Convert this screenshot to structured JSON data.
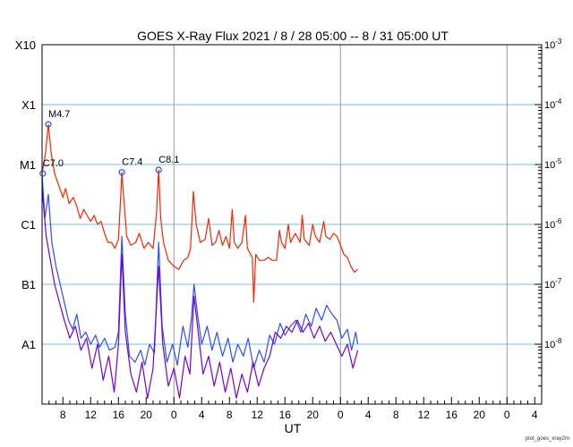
{
  "chart_data": {
    "type": "line",
    "title": "GOES X-Ray Flux   2021 /  8 / 28   05:00 --  8 / 31   05:00   UT",
    "xlabel": "UT",
    "ylabel": "",
    "footer": "plot_goes_xray2m",
    "x_unit": "hours since 2021-08-28 05:00 UT",
    "xlim": [
      0,
      72
    ],
    "ylim_log10": [
      -9,
      -3
    ],
    "yscale": "log",
    "grid": true,
    "x_tick_labels": [
      "8",
      "12",
      "16",
      "20",
      "0",
      "4",
      "8",
      "12",
      "16",
      "20",
      "0",
      "4",
      "8",
      "12",
      "16",
      "20",
      "0",
      "4"
    ],
    "x_tick_hours": [
      3,
      7,
      11,
      15,
      19,
      23,
      27,
      31,
      35,
      39,
      43,
      47,
      51,
      55,
      59,
      63,
      67,
      71
    ],
    "day_boundaries": [
      19,
      43,
      67
    ],
    "flare_class_labels": [
      {
        "label": "X10",
        "log10": -3
      },
      {
        "label": "X1",
        "log10": -4
      },
      {
        "label": "M1",
        "log10": -5
      },
      {
        "label": "C1",
        "log10": -6
      },
      {
        "label": "B1",
        "log10": -7
      },
      {
        "label": "A1",
        "log10": -8
      }
    ],
    "right_axis_labels": [
      {
        "base": "10",
        "exp": "-3",
        "log10": -3
      },
      {
        "base": "10",
        "exp": "-4",
        "log10": -4
      },
      {
        "base": "10",
        "exp": "-5",
        "log10": -5
      },
      {
        "base": "10",
        "exp": "-6",
        "log10": -6
      },
      {
        "base": "10",
        "exp": "-7",
        "log10": -7
      },
      {
        "base": "10",
        "exp": "-8",
        "log10": -8
      }
    ],
    "annotations": [
      {
        "label": "C7.0",
        "x": 0.1,
        "log10": -5.15
      },
      {
        "label": "M4.7",
        "x": 0.9,
        "log10": -4.33
      },
      {
        "label": "C7.4",
        "x": 11.5,
        "log10": -5.13
      },
      {
        "label": "C8.1",
        "x": 16.8,
        "log10": -5.09
      }
    ],
    "series": [
      {
        "color": "#ff2200",
        "points": [
          [
            0,
            -5.15
          ],
          [
            0.5,
            -4.8
          ],
          [
            0.9,
            -4.33
          ],
          [
            1.3,
            -4.8
          ],
          [
            1.8,
            -5.15
          ],
          [
            2.4,
            -5.35
          ],
          [
            3,
            -5.55
          ],
          [
            3.4,
            -5.4
          ],
          [
            3.9,
            -5.65
          ],
          [
            4.5,
            -5.55
          ],
          [
            5,
            -5.7
          ],
          [
            5.5,
            -5.9
          ],
          [
            6,
            -5.75
          ],
          [
            6.5,
            -5.85
          ],
          [
            7,
            -5.95
          ],
          [
            7.5,
            -5.85
          ],
          [
            8,
            -6.0
          ],
          [
            8.5,
            -5.95
          ],
          [
            9,
            -6.15
          ],
          [
            9.5,
            -6.3
          ],
          [
            10,
            -6.3
          ],
          [
            10.5,
            -6.4
          ],
          [
            11,
            -6.25
          ],
          [
            11.3,
            -5.6
          ],
          [
            11.5,
            -5.13
          ],
          [
            11.8,
            -5.6
          ],
          [
            12.2,
            -6.2
          ],
          [
            12.8,
            -6.35
          ],
          [
            13.5,
            -6.3
          ],
          [
            14,
            -6.15
          ],
          [
            14.7,
            -6.4
          ],
          [
            15.3,
            -6.3
          ],
          [
            16,
            -6.4
          ],
          [
            16.5,
            -5.8
          ],
          [
            16.8,
            -5.09
          ],
          [
            17.1,
            -5.9
          ],
          [
            17.5,
            -6.3
          ],
          [
            18.2,
            -6.6
          ],
          [
            19,
            -6.7
          ],
          [
            19.7,
            -6.75
          ],
          [
            20.4,
            -6.6
          ],
          [
            21,
            -6.55
          ],
          [
            21.4,
            -6.4
          ],
          [
            21.8,
            -5.45
          ],
          [
            22.2,
            -6.0
          ],
          [
            22.8,
            -6.3
          ],
          [
            23.5,
            -6.25
          ],
          [
            24,
            -5.9
          ],
          [
            24.5,
            -6.35
          ],
          [
            25,
            -6.3
          ],
          [
            25.5,
            -6.1
          ],
          [
            26,
            -6.35
          ],
          [
            26.5,
            -6.2
          ],
          [
            27,
            -6.4
          ],
          [
            27.4,
            -5.75
          ],
          [
            27.7,
            -6.3
          ],
          [
            28.2,
            -6.4
          ],
          [
            28.8,
            -6.3
          ],
          [
            29.3,
            -5.85
          ],
          [
            29.6,
            -6.4
          ],
          [
            30.3,
            -6.55
          ],
          [
            30.5,
            -7.3
          ],
          [
            30.8,
            -6.5
          ],
          [
            31.3,
            -6.6
          ],
          [
            32,
            -6.6
          ],
          [
            32.6,
            -6.55
          ],
          [
            33.2,
            -6.6
          ],
          [
            33.8,
            -6.6
          ],
          [
            34.2,
            -6.1
          ],
          [
            34.5,
            -6.3
          ],
          [
            35,
            -6.4
          ],
          [
            35.5,
            -6.0
          ],
          [
            35.8,
            -6.3
          ],
          [
            36.5,
            -6.15
          ],
          [
            37.2,
            -6.3
          ],
          [
            37.5,
            -5.85
          ],
          [
            37.8,
            -6.25
          ],
          [
            38.5,
            -6.35
          ],
          [
            39,
            -6.0
          ],
          [
            39.4,
            -6.2
          ],
          [
            40,
            -6.3
          ],
          [
            40.6,
            -5.95
          ],
          [
            40.9,
            -6.2
          ],
          [
            41.5,
            -6.25
          ],
          [
            42,
            -6.15
          ],
          [
            42.5,
            -6.2
          ],
          [
            43,
            -6.35
          ],
          [
            43.5,
            -6.5
          ],
          [
            44,
            -6.55
          ],
          [
            44.5,
            -6.7
          ],
          [
            45,
            -6.8
          ],
          [
            45.5,
            -6.75
          ]
        ]
      },
      {
        "color": "#2b4cff",
        "points": [
          [
            0,
            -5.15
          ],
          [
            0.4,
            -5.9
          ],
          [
            0.9,
            -5.5
          ],
          [
            1.4,
            -6.3
          ],
          [
            2,
            -6.7
          ],
          [
            2.6,
            -7.0
          ],
          [
            3.2,
            -7.3
          ],
          [
            3.8,
            -7.6
          ],
          [
            4.4,
            -7.75
          ],
          [
            5,
            -7.5
          ],
          [
            5.6,
            -7.9
          ],
          [
            6.3,
            -7.8
          ],
          [
            7,
            -8.0
          ],
          [
            7.7,
            -7.85
          ],
          [
            8.3,
            -8.05
          ],
          [
            9,
            -7.9
          ],
          [
            9.7,
            -8.1
          ],
          [
            10.5,
            -8.05
          ],
          [
            11,
            -7.8
          ],
          [
            11.5,
            -6.2
          ],
          [
            12,
            -7.5
          ],
          [
            12.6,
            -8.2
          ],
          [
            13.4,
            -8.3
          ],
          [
            14.2,
            -8.1
          ],
          [
            14.8,
            -8.35
          ],
          [
            15.5,
            -8.0
          ],
          [
            16.2,
            -8.15
          ],
          [
            16.8,
            -6.3
          ],
          [
            17.3,
            -7.7
          ],
          [
            18,
            -8.3
          ],
          [
            18.8,
            -8.0
          ],
          [
            19.5,
            -8.35
          ],
          [
            20.3,
            -7.7
          ],
          [
            21,
            -8.05
          ],
          [
            21.5,
            -7.6
          ],
          [
            21.9,
            -7.0
          ],
          [
            22.4,
            -7.5
          ],
          [
            23,
            -8.0
          ],
          [
            23.8,
            -7.7
          ],
          [
            24.5,
            -8.1
          ],
          [
            25.2,
            -7.8
          ],
          [
            26,
            -8.2
          ],
          [
            26.8,
            -7.9
          ],
          [
            27.5,
            -8.3
          ],
          [
            28.2,
            -8.0
          ],
          [
            29,
            -8.2
          ],
          [
            29.7,
            -7.9
          ],
          [
            30.5,
            -8.4
          ],
          [
            31.3,
            -8.1
          ],
          [
            32,
            -8.3
          ],
          [
            32.8,
            -7.85
          ],
          [
            33.5,
            -8.0
          ],
          [
            34.3,
            -7.65
          ],
          [
            35,
            -7.85
          ],
          [
            35.8,
            -7.7
          ],
          [
            36.6,
            -7.6
          ],
          [
            37.3,
            -7.8
          ],
          [
            38,
            -7.5
          ],
          [
            38.8,
            -7.7
          ],
          [
            39.5,
            -7.4
          ],
          [
            40.3,
            -7.6
          ],
          [
            41,
            -7.35
          ],
          [
            41.8,
            -7.5
          ],
          [
            42.5,
            -7.6
          ],
          [
            43.2,
            -7.9
          ],
          [
            44,
            -7.75
          ],
          [
            44.6,
            -8.1
          ],
          [
            45.2,
            -7.8
          ],
          [
            45.5,
            -8.0
          ]
        ]
      },
      {
        "color": "#7a00cc",
        "points": [
          [
            0,
            -5.4
          ],
          [
            0.6,
            -6.2
          ],
          [
            1.2,
            -6.6
          ],
          [
            1.8,
            -7.0
          ],
          [
            2.5,
            -7.3
          ],
          [
            3.2,
            -7.6
          ],
          [
            4,
            -7.9
          ],
          [
            4.8,
            -7.7
          ],
          [
            5.6,
            -8.1
          ],
          [
            6.4,
            -7.9
          ],
          [
            7.2,
            -8.4
          ],
          [
            8,
            -8.0
          ],
          [
            8.8,
            -8.6
          ],
          [
            9.6,
            -8.2
          ],
          [
            10.4,
            -8.8
          ],
          [
            11,
            -8.0
          ],
          [
            11.5,
            -6.5
          ],
          [
            12,
            -7.8
          ],
          [
            12.8,
            -8.5
          ],
          [
            13.6,
            -8.8
          ],
          [
            14.4,
            -8.3
          ],
          [
            15.2,
            -8.9
          ],
          [
            16,
            -8.4
          ],
          [
            16.8,
            -6.7
          ],
          [
            17.4,
            -8.0
          ],
          [
            18.2,
            -8.7
          ],
          [
            19,
            -8.4
          ],
          [
            19.8,
            -8.9
          ],
          [
            20.6,
            -8.2
          ],
          [
            21.3,
            -8.5
          ],
          [
            21.9,
            -7.2
          ],
          [
            22.5,
            -7.8
          ],
          [
            23.2,
            -8.5
          ],
          [
            24,
            -8.2
          ],
          [
            24.8,
            -8.7
          ],
          [
            25.6,
            -8.3
          ],
          [
            26.4,
            -8.8
          ],
          [
            27.2,
            -8.4
          ],
          [
            28,
            -8.9
          ],
          [
            28.8,
            -8.5
          ],
          [
            29.6,
            -8.8
          ],
          [
            30.4,
            -8.3
          ],
          [
            31.2,
            -8.7
          ],
          [
            32,
            -8.4
          ],
          [
            32.8,
            -8.2
          ],
          [
            33.6,
            -7.8
          ],
          [
            34.4,
            -7.9
          ],
          [
            35.2,
            -7.7
          ],
          [
            36,
            -7.8
          ],
          [
            36.8,
            -7.6
          ],
          [
            37.6,
            -7.8
          ],
          [
            38.4,
            -7.65
          ],
          [
            39.2,
            -7.9
          ],
          [
            40,
            -7.7
          ],
          [
            40.8,
            -7.95
          ],
          [
            41.6,
            -7.8
          ],
          [
            42.4,
            -8.0
          ],
          [
            43.2,
            -8.2
          ],
          [
            44,
            -8.0
          ],
          [
            44.8,
            -8.4
          ],
          [
            45.5,
            -8.1
          ]
        ]
      }
    ]
  }
}
